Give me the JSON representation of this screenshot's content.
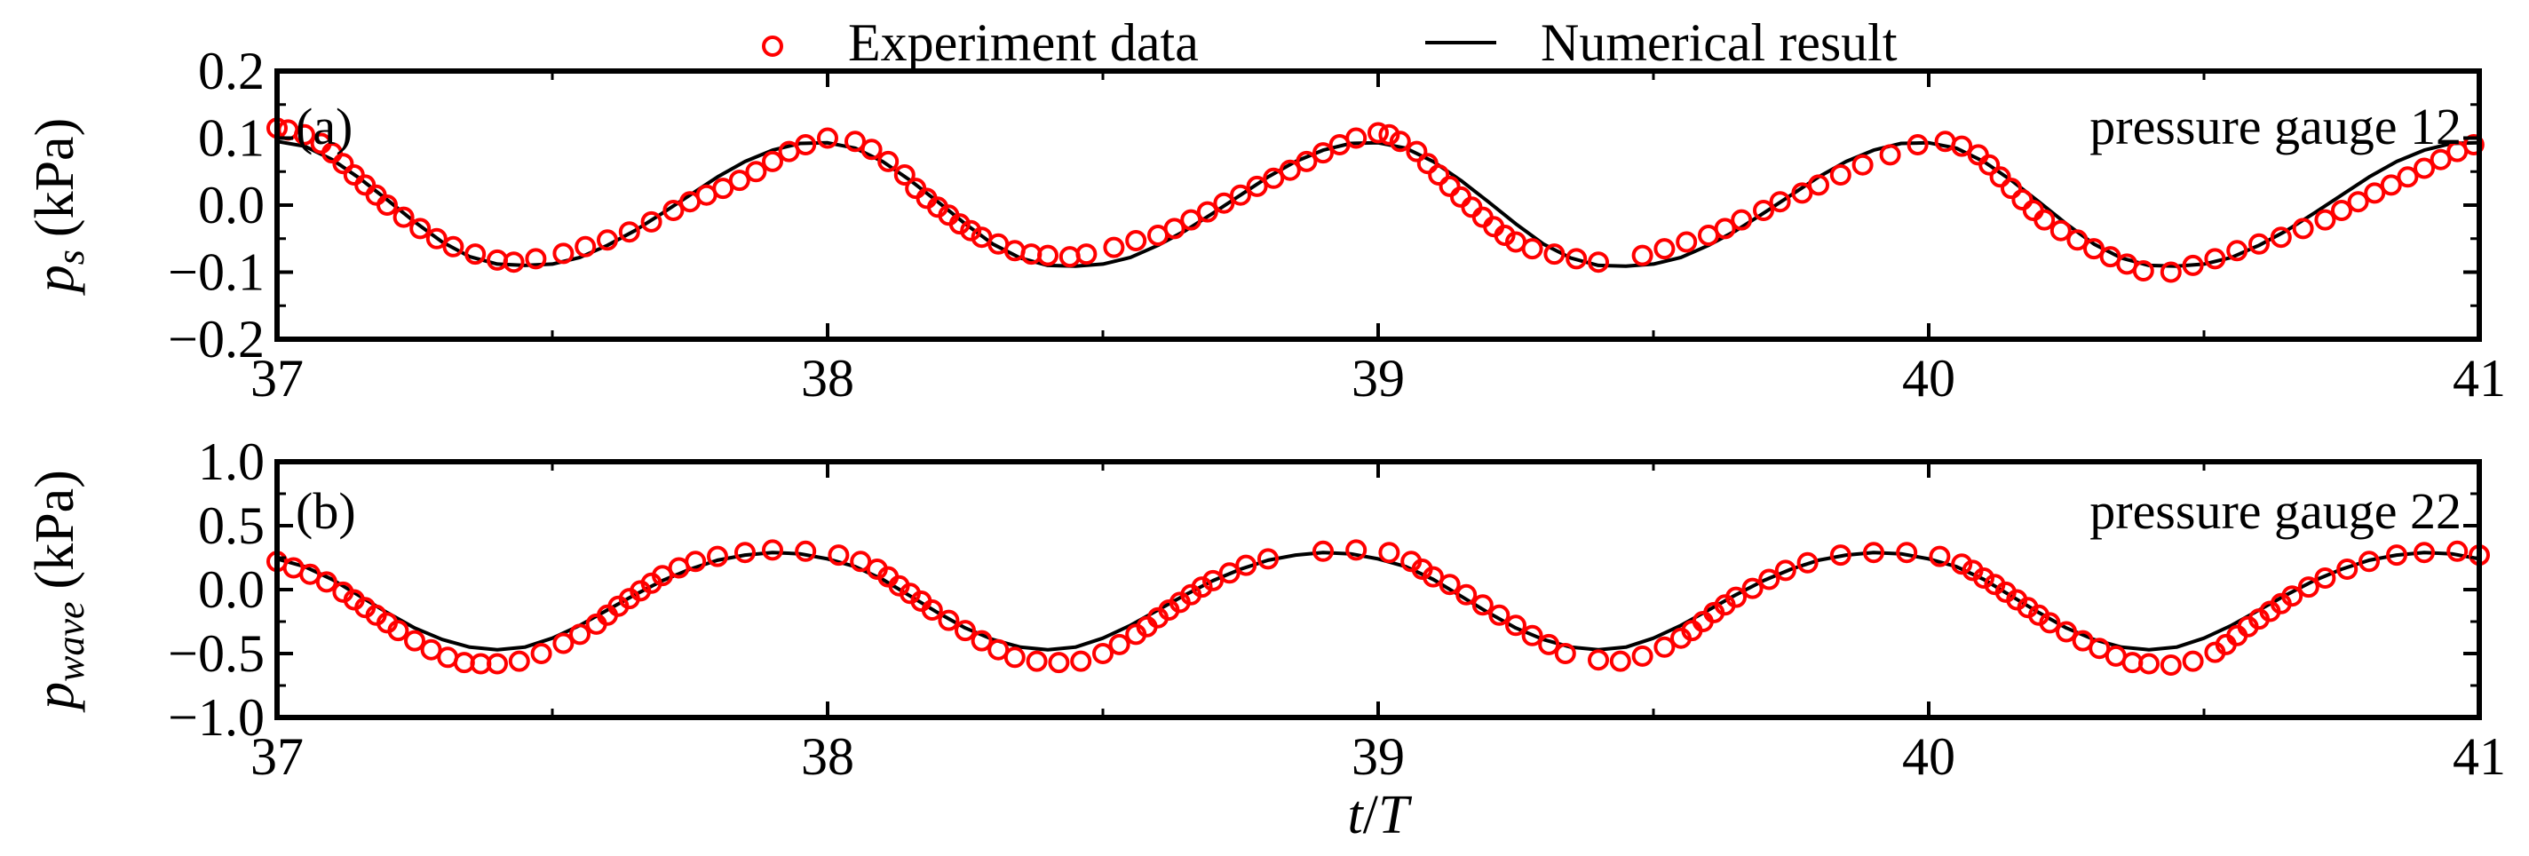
{
  "legend": {
    "experiment_label": "Experiment data",
    "numerical_label": "Numerical result",
    "experiment_color": "#ff0000",
    "numerical_color": "#000000"
  },
  "xaxis": {
    "label_var": "t",
    "label_sep": "/",
    "label_den": "T"
  },
  "chart_data": [
    {
      "type": "line",
      "panel_label": "(a)",
      "annotation": "pressure gauge 12",
      "ylabel_main": "p",
      "ylabel_sub": "s",
      "ylabel_unit": "(kPa)",
      "xlim": [
        37,
        41
      ],
      "ylim": [
        -0.2,
        0.2
      ],
      "xticks": [
        37,
        38,
        39,
        40,
        41
      ],
      "xtick_labels": [
        "37",
        "38",
        "39",
        "40",
        "41"
      ],
      "yticks": [
        -0.2,
        -0.1,
        0.0,
        0.1,
        0.2
      ],
      "ytick_labels": [
        "−0.2",
        "−0.1",
        "0.0",
        "0.1",
        "0.2"
      ],
      "series": [
        {
          "name": "Numerical result",
          "style": "line",
          "x": [
            37.0,
            37.05,
            37.1,
            37.15,
            37.2,
            37.25,
            37.3,
            37.35,
            37.4,
            37.45,
            37.5,
            37.55,
            37.6,
            37.65,
            37.7,
            37.75,
            37.8,
            37.85,
            37.9,
            37.95,
            38.0,
            38.05,
            38.1,
            38.15,
            38.2,
            38.25,
            38.3,
            38.35,
            38.4,
            38.45,
            38.5,
            38.55,
            38.6,
            38.65,
            38.7,
            38.75,
            38.8,
            38.85,
            38.9,
            38.95,
            39.0,
            39.05,
            39.1,
            39.15,
            39.2,
            39.25,
            39.3,
            39.35,
            39.4,
            39.45,
            39.5,
            39.55,
            39.6,
            39.65,
            39.7,
            39.75,
            39.8,
            39.85,
            39.9,
            39.95,
            40.0,
            40.05,
            40.1,
            40.15,
            40.2,
            40.25,
            40.3,
            40.35,
            40.4,
            40.45,
            40.5,
            40.55,
            40.6,
            40.65,
            40.7,
            40.75,
            40.8,
            40.85,
            40.9,
            40.95,
            41.0
          ],
          "y": [
            0.095,
            0.088,
            0.068,
            0.04,
            0.008,
            -0.025,
            -0.055,
            -0.077,
            -0.088,
            -0.09,
            -0.088,
            -0.078,
            -0.06,
            -0.038,
            -0.012,
            0.015,
            0.042,
            0.065,
            0.082,
            0.092,
            0.093,
            0.085,
            0.065,
            0.037,
            0.005,
            -0.028,
            -0.058,
            -0.079,
            -0.09,
            -0.091,
            -0.088,
            -0.078,
            -0.06,
            -0.038,
            -0.012,
            0.015,
            0.042,
            0.065,
            0.082,
            0.092,
            0.093,
            0.085,
            0.065,
            0.037,
            0.005,
            -0.028,
            -0.058,
            -0.079,
            -0.09,
            -0.091,
            -0.088,
            -0.078,
            -0.06,
            -0.038,
            -0.012,
            0.015,
            0.042,
            0.065,
            0.082,
            0.092,
            0.093,
            0.085,
            0.065,
            0.037,
            0.005,
            -0.028,
            -0.058,
            -0.079,
            -0.09,
            -0.091,
            -0.088,
            -0.078,
            -0.06,
            -0.038,
            -0.012,
            0.015,
            0.042,
            0.065,
            0.082,
            0.092,
            0.093
          ]
        },
        {
          "name": "Experiment data",
          "style": "marker",
          "x": [
            37.0,
            37.02,
            37.05,
            37.08,
            37.1,
            37.12,
            37.14,
            37.16,
            37.18,
            37.2,
            37.23,
            37.26,
            37.29,
            37.32,
            37.36,
            37.4,
            37.43,
            37.47,
            37.52,
            37.56,
            37.6,
            37.64,
            37.68,
            37.72,
            37.75,
            37.78,
            37.81,
            37.84,
            37.87,
            37.9,
            37.93,
            37.96,
            38.0,
            38.05,
            38.08,
            38.11,
            38.14,
            38.16,
            38.18,
            38.2,
            38.22,
            38.24,
            38.26,
            38.28,
            38.31,
            38.34,
            38.37,
            38.4,
            38.44,
            38.47,
            38.52,
            38.56,
            38.6,
            38.63,
            38.66,
            38.69,
            38.72,
            38.75,
            38.78,
            38.81,
            38.84,
            38.87,
            38.9,
            38.93,
            38.96,
            39.0,
            39.02,
            39.04,
            39.07,
            39.09,
            39.11,
            39.13,
            39.15,
            39.17,
            39.19,
            39.21,
            39.23,
            39.25,
            39.28,
            39.32,
            39.36,
            39.4,
            39.48,
            39.52,
            39.56,
            39.6,
            39.63,
            39.66,
            39.7,
            39.73,
            39.77,
            39.8,
            39.84,
            39.88,
            39.93,
            39.98,
            40.03,
            40.06,
            40.09,
            40.11,
            40.13,
            40.15,
            40.17,
            40.19,
            40.21,
            40.24,
            40.27,
            40.3,
            40.33,
            40.36,
            40.39,
            40.44,
            40.48,
            40.52,
            40.56,
            40.6,
            40.64,
            40.68,
            40.72,
            40.75,
            40.78,
            40.81,
            40.84,
            40.87,
            40.9,
            40.93,
            40.96,
            40.99
          ],
          "y": [
            0.115,
            0.112,
            0.105,
            0.092,
            0.078,
            0.062,
            0.045,
            0.03,
            0.015,
            0.0,
            -0.018,
            -0.035,
            -0.05,
            -0.062,
            -0.073,
            -0.082,
            -0.085,
            -0.08,
            -0.072,
            -0.062,
            -0.052,
            -0.04,
            -0.025,
            -0.008,
            0.005,
            0.015,
            0.025,
            0.037,
            0.05,
            0.065,
            0.08,
            0.09,
            0.1,
            0.095,
            0.083,
            0.065,
            0.045,
            0.025,
            0.01,
            -0.003,
            -0.015,
            -0.028,
            -0.038,
            -0.048,
            -0.058,
            -0.068,
            -0.073,
            -0.075,
            -0.077,
            -0.073,
            -0.063,
            -0.053,
            -0.045,
            -0.035,
            -0.022,
            -0.01,
            0.003,
            0.015,
            0.028,
            0.04,
            0.052,
            0.065,
            0.078,
            0.09,
            0.1,
            0.108,
            0.105,
            0.095,
            0.08,
            0.062,
            0.045,
            0.028,
            0.012,
            -0.003,
            -0.018,
            -0.032,
            -0.045,
            -0.055,
            -0.065,
            -0.073,
            -0.08,
            -0.085,
            -0.075,
            -0.065,
            -0.055,
            -0.045,
            -0.035,
            -0.022,
            -0.008,
            0.005,
            0.018,
            0.03,
            0.045,
            0.06,
            0.075,
            0.09,
            0.095,
            0.088,
            0.075,
            0.06,
            0.042,
            0.025,
            0.008,
            -0.008,
            -0.022,
            -0.038,
            -0.052,
            -0.065,
            -0.077,
            -0.088,
            -0.098,
            -0.1,
            -0.09,
            -0.08,
            -0.068,
            -0.058,
            -0.048,
            -0.035,
            -0.022,
            -0.008,
            0.005,
            0.018,
            0.03,
            0.042,
            0.055,
            0.068,
            0.08,
            0.09
          ]
        }
      ]
    },
    {
      "type": "line",
      "panel_label": "(b)",
      "annotation": "pressure gauge 22",
      "ylabel_main": "p",
      "ylabel_sub": "wave",
      "ylabel_unit": "(kPa)",
      "xlim": [
        37,
        41
      ],
      "ylim": [
        -1.0,
        1.0
      ],
      "xticks": [
        37,
        38,
        39,
        40,
        41
      ],
      "xtick_labels": [
        "37",
        "38",
        "39",
        "40",
        "41"
      ],
      "yticks": [
        -1.0,
        -0.5,
        0.0,
        0.5,
        1.0
      ],
      "ytick_labels": [
        "−1.0",
        "−0.5",
        "0.0",
        "0.5",
        "1.0"
      ],
      "series": [
        {
          "name": "Numerical result",
          "style": "line",
          "x": [
            37.0,
            37.05,
            37.1,
            37.15,
            37.2,
            37.25,
            37.3,
            37.35,
            37.4,
            37.45,
            37.5,
            37.55,
            37.6,
            37.65,
            37.7,
            37.75,
            37.8,
            37.85,
            37.9,
            37.95,
            38.0,
            38.05,
            38.1,
            38.15,
            38.2,
            38.25,
            38.3,
            38.35,
            38.4,
            38.45,
            38.5,
            38.55,
            38.6,
            38.65,
            38.7,
            38.75,
            38.8,
            38.85,
            38.9,
            38.95,
            39.0,
            39.05,
            39.1,
            39.15,
            39.2,
            39.25,
            39.3,
            39.35,
            39.4,
            39.45,
            39.5,
            39.55,
            39.6,
            39.65,
            39.7,
            39.75,
            39.8,
            39.85,
            39.9,
            39.95,
            40.0,
            40.05,
            40.1,
            40.15,
            40.2,
            40.25,
            40.3,
            40.35,
            40.4,
            40.45,
            40.5,
            40.55,
            40.6,
            40.65,
            40.7,
            40.75,
            40.8,
            40.85,
            40.9,
            40.95,
            41.0
          ],
          "y": [
            0.24,
            0.18,
            0.08,
            -0.05,
            -0.18,
            -0.3,
            -0.39,
            -0.45,
            -0.47,
            -0.45,
            -0.38,
            -0.28,
            -0.16,
            -0.04,
            0.07,
            0.16,
            0.23,
            0.27,
            0.29,
            0.28,
            0.24,
            0.18,
            0.08,
            -0.05,
            -0.18,
            -0.3,
            -0.39,
            -0.45,
            -0.47,
            -0.45,
            -0.38,
            -0.28,
            -0.16,
            -0.04,
            0.07,
            0.16,
            0.23,
            0.27,
            0.29,
            0.28,
            0.24,
            0.18,
            0.08,
            -0.05,
            -0.18,
            -0.3,
            -0.39,
            -0.45,
            -0.47,
            -0.45,
            -0.38,
            -0.28,
            -0.16,
            -0.04,
            0.07,
            0.16,
            0.23,
            0.27,
            0.29,
            0.28,
            0.24,
            0.18,
            0.08,
            -0.05,
            -0.18,
            -0.3,
            -0.39,
            -0.45,
            -0.47,
            -0.45,
            -0.38,
            -0.28,
            -0.16,
            -0.04,
            0.07,
            0.16,
            0.23,
            0.27,
            0.29,
            0.28,
            0.24
          ]
        },
        {
          "name": "Experiment data",
          "style": "marker",
          "x": [
            37.0,
            37.03,
            37.06,
            37.09,
            37.12,
            37.14,
            37.16,
            37.18,
            37.2,
            37.22,
            37.25,
            37.28,
            37.31,
            37.34,
            37.37,
            37.4,
            37.44,
            37.48,
            37.52,
            37.55,
            37.58,
            37.6,
            37.62,
            37.64,
            37.66,
            37.68,
            37.7,
            37.73,
            37.76,
            37.8,
            37.85,
            37.9,
            37.96,
            38.02,
            38.06,
            38.09,
            38.11,
            38.13,
            38.15,
            38.17,
            38.19,
            38.22,
            38.25,
            38.28,
            38.31,
            38.34,
            38.38,
            38.42,
            38.46,
            38.5,
            38.53,
            38.56,
            38.58,
            38.6,
            38.62,
            38.64,
            38.66,
            38.68,
            38.7,
            38.73,
            38.76,
            38.8,
            38.9,
            38.96,
            39.02,
            39.06,
            39.08,
            39.1,
            39.13,
            39.16,
            39.19,
            39.22,
            39.25,
            39.28,
            39.31,
            39.34,
            39.4,
            39.44,
            39.48,
            39.52,
            39.55,
            39.57,
            39.59,
            39.61,
            39.63,
            39.65,
            39.68,
            39.71,
            39.74,
            39.78,
            39.84,
            39.9,
            39.96,
            40.02,
            40.06,
            40.08,
            40.1,
            40.12,
            40.14,
            40.16,
            40.18,
            40.2,
            40.22,
            40.25,
            40.28,
            40.31,
            40.34,
            40.37,
            40.4,
            40.44,
            40.48,
            40.52,
            40.54,
            40.56,
            40.58,
            40.6,
            40.62,
            40.64,
            40.66,
            40.69,
            40.72,
            40.76,
            40.8,
            40.85,
            40.9,
            40.96,
            41.0
          ],
          "y": [
            0.22,
            0.17,
            0.12,
            0.06,
            -0.02,
            -0.08,
            -0.14,
            -0.2,
            -0.26,
            -0.32,
            -0.4,
            -0.47,
            -0.53,
            -0.57,
            -0.58,
            -0.58,
            -0.56,
            -0.5,
            -0.42,
            -0.35,
            -0.27,
            -0.2,
            -0.13,
            -0.07,
            -0.01,
            0.05,
            0.11,
            0.17,
            0.22,
            0.26,
            0.29,
            0.31,
            0.3,
            0.27,
            0.22,
            0.16,
            0.1,
            0.03,
            -0.03,
            -0.09,
            -0.16,
            -0.24,
            -0.32,
            -0.4,
            -0.47,
            -0.53,
            -0.56,
            -0.57,
            -0.56,
            -0.5,
            -0.43,
            -0.35,
            -0.29,
            -0.22,
            -0.16,
            -0.1,
            -0.04,
            0.02,
            0.07,
            0.13,
            0.19,
            0.24,
            0.3,
            0.31,
            0.29,
            0.22,
            0.16,
            0.1,
            0.04,
            -0.04,
            -0.12,
            -0.2,
            -0.28,
            -0.36,
            -0.43,
            -0.5,
            -0.55,
            -0.56,
            -0.52,
            -0.45,
            -0.38,
            -0.32,
            -0.25,
            -0.18,
            -0.12,
            -0.06,
            0.01,
            0.08,
            0.15,
            0.21,
            0.27,
            0.29,
            0.29,
            0.26,
            0.2,
            0.15,
            0.09,
            0.04,
            -0.02,
            -0.08,
            -0.14,
            -0.2,
            -0.26,
            -0.33,
            -0.4,
            -0.46,
            -0.52,
            -0.57,
            -0.58,
            -0.59,
            -0.56,
            -0.49,
            -0.43,
            -0.36,
            -0.29,
            -0.23,
            -0.17,
            -0.11,
            -0.05,
            0.02,
            0.09,
            0.16,
            0.22,
            0.27,
            0.29,
            0.3,
            0.27
          ]
        }
      ]
    }
  ]
}
